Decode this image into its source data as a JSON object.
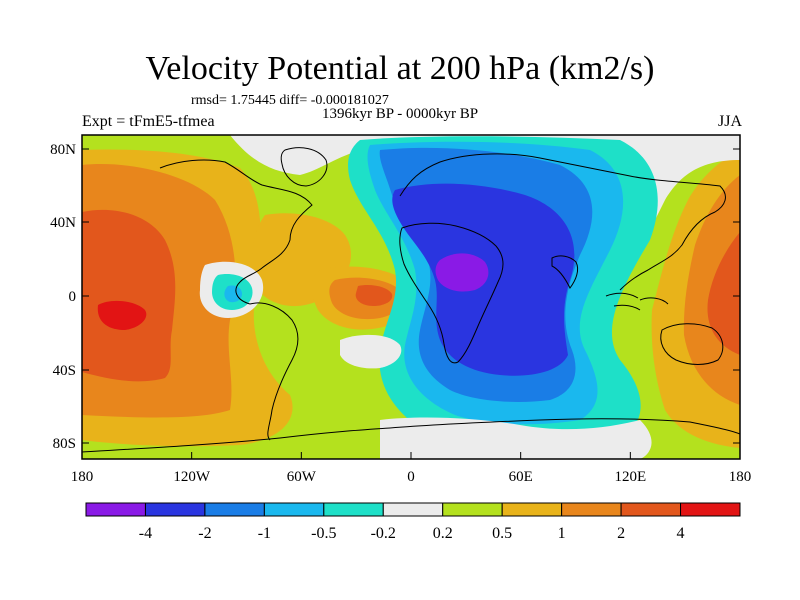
{
  "title": "Velocity Potential at 200 hPa (km2/s)",
  "stats_line": "rmsd= 1.75445 diff= -0.000181027",
  "period": "1396kyr BP - 0000kyr BP",
  "experiment": "Expt = tFmE5-tfmea",
  "season": "JJA",
  "x_ticks": [
    "180",
    "120W",
    "60W",
    "0",
    "60E",
    "120E",
    "180"
  ],
  "y_ticks": [
    "80N",
    "40N",
    "0",
    "40S",
    "80S"
  ],
  "colorbar": {
    "colors": [
      "#8a1ae6",
      "#2a35e0",
      "#1a7de6",
      "#1ab8ee",
      "#1ee0c8",
      "#ececec",
      "#b4e11e",
      "#e8b31a",
      "#e8861c",
      "#e2571c",
      "#e21414"
    ],
    "labels": [
      "-4",
      "-2",
      "-1",
      "-0.5",
      "-0.2",
      "0.2",
      "0.5",
      "1",
      "2",
      "4"
    ]
  }
}
